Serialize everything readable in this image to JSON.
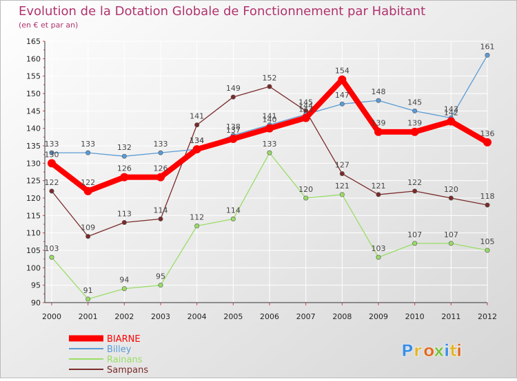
{
  "chart_data": {
    "type": "line",
    "title": "Evolution de la Dotation Globale de Fonctionnement par Habitant",
    "subtitle": "(en € et par an)",
    "x": [
      2000,
      2001,
      2002,
      2003,
      2004,
      2005,
      2006,
      2007,
      2008,
      2009,
      2010,
      2011,
      2012
    ],
    "ylim": [
      90,
      165
    ],
    "yticks": [
      90,
      95,
      100,
      105,
      110,
      115,
      120,
      125,
      130,
      135,
      140,
      145,
      150,
      155,
      160,
      165
    ],
    "grid": true,
    "legend_position": "bottom-left",
    "series": [
      {
        "name": "BIARNE",
        "color": "#ff0000",
        "values": [
          130,
          122,
          126,
          126,
          134,
          137,
          140,
          143,
          154,
          139,
          139,
          142,
          136
        ]
      },
      {
        "name": "Billey",
        "color": "#5a9bd5",
        "values": [
          133,
          133,
          132,
          133,
          134,
          138,
          141,
          144,
          147,
          148,
          145,
          143,
          161
        ]
      },
      {
        "name": "Rainans",
        "color": "#99dd66",
        "values": [
          103,
          91,
          94,
          95,
          112,
          114,
          133,
          120,
          121,
          103,
          107,
          107,
          105
        ]
      },
      {
        "name": "Sampans",
        "color": "#7a2a2a",
        "values": [
          122,
          109,
          113,
          114,
          141,
          149,
          152,
          145,
          127,
          121,
          122,
          120,
          118
        ]
      }
    ]
  },
  "branding": {
    "logo_text": "Proxiti"
  }
}
